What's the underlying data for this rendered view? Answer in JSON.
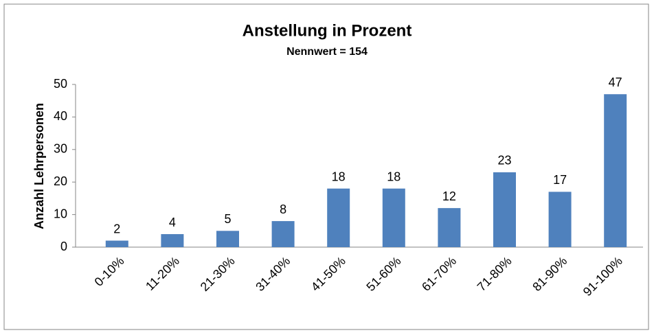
{
  "chart_data": {
    "type": "bar",
    "title": "Anstellung in Prozent",
    "subtitle": "Nennwert = 154",
    "ylabel": "Anzahl Lehrpersonen",
    "categories": [
      "0-10%",
      "11-20%",
      "21-30%",
      "31-40%",
      "41-50%",
      "51-60%",
      "61-70%",
      "71-80%",
      "81-90%",
      "91-100%"
    ],
    "values": [
      2,
      4,
      5,
      8,
      18,
      18,
      12,
      23,
      17,
      47
    ],
    "color": "#4f81bd",
    "ylim": [
      0,
      50
    ],
    "yticks": [
      0,
      10,
      20,
      30,
      40,
      50
    ],
    "grid": false
  }
}
